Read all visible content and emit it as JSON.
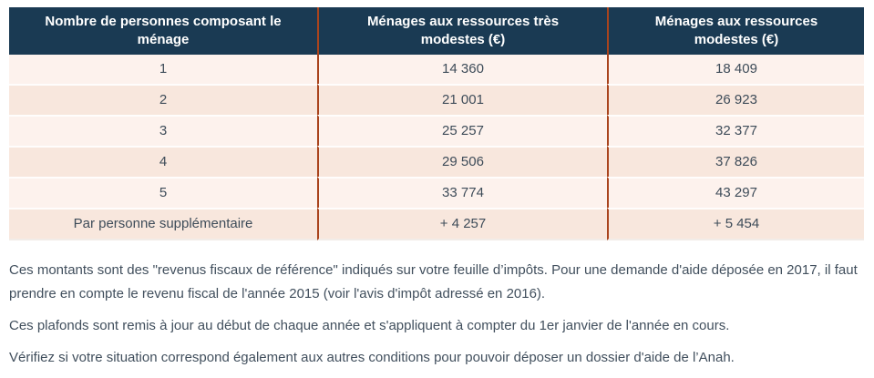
{
  "table": {
    "columns": [
      {
        "label": "Nombre de personnes composant le ménage"
      },
      {
        "label": "Ménages aux ressources très modestes (€)"
      },
      {
        "label": "Ménages aux ressources modestes (€)"
      }
    ],
    "rows": [
      [
        "1",
        "14 360",
        "18 409"
      ],
      [
        "2",
        "21 001",
        "26 923"
      ],
      [
        "3",
        "25 257",
        "32 377"
      ],
      [
        "4",
        "29 506",
        "37 826"
      ],
      [
        "5",
        "33 774",
        "43 297"
      ],
      [
        "Par personne supplémentaire",
        "+ 4 257",
        "+ 5 454"
      ]
    ]
  },
  "notes": {
    "p1": "Ces montants sont des \"revenus fiscaux de référence\" indiqués sur votre feuille d’impôts. Pour une demande d'aide déposée en 2017, il faut prendre en compte le revenu fiscal de l'année 2015 (voir l'avis d'impôt adressé en 2016).",
    "p2": "Ces plafonds sont remis à jour au début de chaque année et s'appliquent à compter du 1er janvier de l'année en cours.",
    "p3": "Vérifiez si votre situation correspond également aux autres conditions pour pouvoir déposer un dossier d'aide de l’Anah."
  },
  "colors": {
    "header_bg": "#1a3a53",
    "header_text": "#ffffff",
    "column_divider": "#a9441d",
    "row_odd_bg": "#fdf2ed",
    "row_even_bg": "#f8e7dd",
    "cell_text": "#3e4c59",
    "note_text": "#414f5d"
  }
}
